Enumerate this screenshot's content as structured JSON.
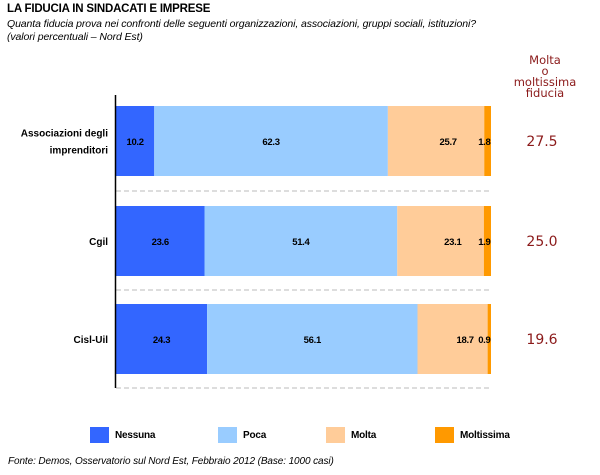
{
  "chart_data": {
    "type": "bar",
    "orientation": "horizontal",
    "stacked": true,
    "title": "LA FIDUCIA IN SINDACATI E IMPRESE",
    "subtitle_lines": [
      "Quanta fiducia prova nei confronti delle seguenti organizzazioni, associazioni, gruppi sociali, istituzioni?",
      "(valori percentuali – Nord Est)"
    ],
    "categories": [
      "Associazioni degli imprenditori",
      "Cgil",
      "Cisl-Uil"
    ],
    "category_label_lines": [
      [
        "Associazioni degli",
        "imprenditori"
      ],
      [
        "Cgil"
      ],
      [
        "Cisl-Uil"
      ]
    ],
    "series": [
      {
        "name": "Nessuna",
        "color": "#3366ff",
        "values": [
          10.2,
          23.6,
          24.3
        ]
      },
      {
        "name": "Poca",
        "color": "#99ccff",
        "values": [
          62.3,
          51.4,
          56.1
        ]
      },
      {
        "name": "Molta",
        "color": "#ffcc99",
        "values": [
          25.7,
          23.1,
          18.7
        ]
      },
      {
        "name": "Moltissima",
        "color": "#ff9900",
        "values": [
          1.8,
          1.9,
          0.9
        ]
      }
    ],
    "totals_header_lines": [
      "Molta",
      "o",
      "moltissima",
      "fiducia"
    ],
    "totals": [
      "27.5",
      "25.0",
      "19.6"
    ],
    "totals_color": "#8b1a1a",
    "xlim": [
      0,
      100
    ],
    "grid": "dashed separators between bars",
    "legend_position": "bottom",
    "source": "Fonte: Demos, Osservatorio sul Nord Est, Febbraio 2012 (Base: 1000 casi)"
  }
}
